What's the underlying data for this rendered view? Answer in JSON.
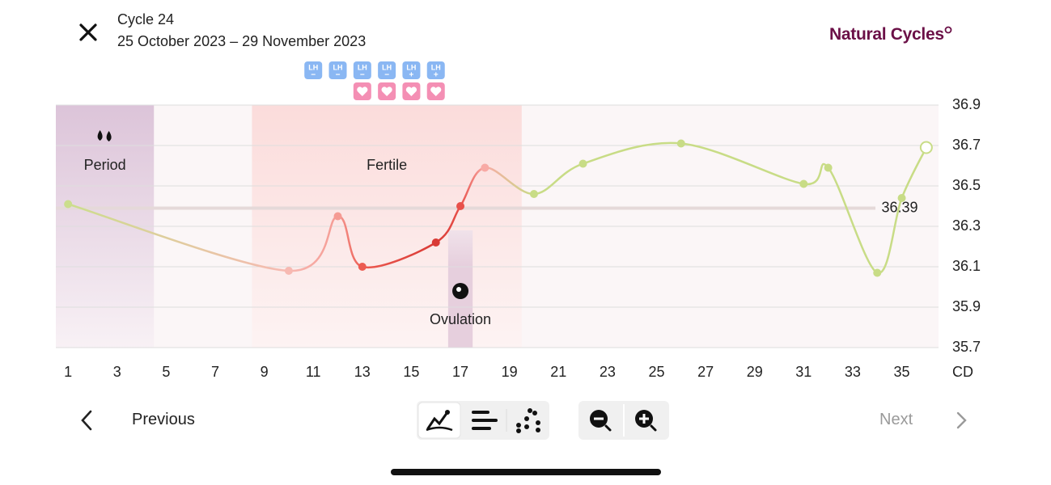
{
  "header": {
    "cycle": "Cycle 24",
    "date_range": "25 October 2023 – 29 November 2023",
    "brand": "Natural Cycles"
  },
  "chart_data": {
    "type": "line",
    "x_label": "CD",
    "x": [
      1,
      10,
      12,
      13,
      16,
      17,
      18,
      20,
      22,
      26,
      31,
      32,
      34,
      35,
      36
    ],
    "values": [
      36.41,
      36.08,
      36.35,
      36.1,
      36.22,
      36.4,
      36.59,
      36.46,
      36.61,
      36.71,
      36.51,
      36.59,
      36.07,
      36.44,
      36.69
    ],
    "point_colors": [
      "#cbde8c",
      "#f7b9b2",
      "#f59a93",
      "#ec5b51",
      "#d93a35",
      "#e8504a",
      "#f8aaa5",
      "#c8dc86",
      "#c8dc86",
      "#c8dc86",
      "#c8dc86",
      "#c8dc86",
      "#c8dc86",
      "#c8dc86",
      "#c8dc86"
    ],
    "hollow_last": true,
    "xlim": [
      0.5,
      36.5
    ],
    "xticks": [
      1,
      3,
      5,
      7,
      9,
      11,
      13,
      15,
      17,
      19,
      21,
      23,
      25,
      27,
      29,
      31,
      33,
      35
    ],
    "ylim": [
      35.7,
      36.9
    ],
    "yticks": [
      35.7,
      35.9,
      36.1,
      36.3,
      36.5,
      36.7,
      36.9
    ],
    "grid": true,
    "cover_line": 36.39,
    "bands": [
      {
        "label": "Period",
        "start": 0.5,
        "end": 4.5
      },
      {
        "label": "Fertile",
        "start": 8.5,
        "end": 19.5
      },
      {
        "label": "Ovulation",
        "start": 16.5,
        "end": 17.5
      }
    ],
    "lh_label": "LH",
    "lh_tests": {
      "days": [
        11,
        12,
        13,
        14,
        15,
        16
      ],
      "results": [
        "−",
        "−",
        "−",
        "−",
        "+",
        "+"
      ]
    },
    "intercourse_days": [
      13,
      14,
      15,
      16
    ]
  },
  "nav": {
    "previous": "Previous",
    "next": "Next"
  }
}
